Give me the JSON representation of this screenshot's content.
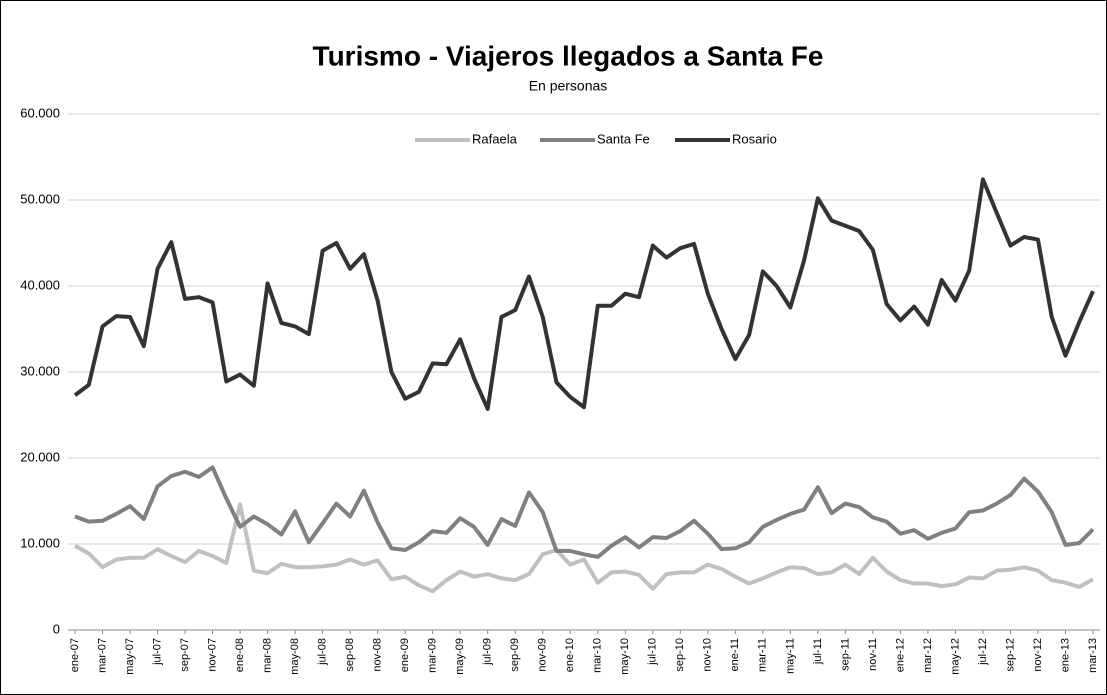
{
  "chart_data": {
    "type": "line",
    "title": "Turismo - Viajeros llegados a Santa Fe",
    "subtitle": "En personas",
    "categories": [
      "ene-07",
      null,
      "mar-07",
      null,
      "may-07",
      null,
      "jul-07",
      null,
      "sep-07",
      null,
      "nov-07",
      null,
      "ene-08",
      null,
      "mar-08",
      null,
      "may-08",
      null,
      "jul-08",
      null,
      "sep-08",
      null,
      "nov-08",
      null,
      "ene-09",
      null,
      "mar-09",
      null,
      "may-09",
      null,
      "jul-09",
      null,
      "sep-09",
      null,
      "nov-09",
      null,
      "ene-10",
      null,
      "mar-10",
      null,
      "may-10",
      null,
      "jul-10",
      null,
      "sep-10",
      null,
      "nov-10",
      null,
      "ene-11",
      null,
      "mar-11",
      null,
      "may-11",
      null,
      "jul-11",
      null,
      "sep-11",
      null,
      "nov-11",
      null,
      "ene-12",
      null,
      "mar-12",
      null,
      "may-12",
      null,
      "jul-12",
      null,
      "sep-12",
      null,
      "nov-12",
      null,
      "ene-13",
      null,
      "mar-13"
    ],
    "series": [
      {
        "name": "Rafaela",
        "color": "#c0c0c0",
        "values": [
          9800,
          8900,
          7300,
          8200,
          8400,
          8400,
          9400,
          8600,
          7900,
          9200,
          8600,
          7800,
          14600,
          6900,
          6600,
          7700,
          7300,
          7300,
          7400,
          7600,
          8200,
          7600,
          8100,
          5900,
          6200,
          5200,
          4500,
          5800,
          6800,
          6200,
          6500,
          6000,
          5800,
          6500,
          8800,
          9300,
          7600,
          8200,
          5500,
          6700,
          6800,
          6400,
          4800,
          6500,
          6700,
          6700,
          7600,
          7100,
          6200,
          5400,
          6000,
          6700,
          7300,
          7200,
          6500,
          6700,
          7600,
          6500,
          8400,
          6800,
          5800,
          5400,
          5400,
          5100,
          5300,
          6100,
          6000,
          6900,
          7000,
          7300,
          6900,
          5800,
          5500,
          5000,
          5900
        ]
      },
      {
        "name": "Santa Fe",
        "color": "#808080",
        "values": [
          13200,
          12600,
          12700,
          13500,
          14400,
          12900,
          16700,
          17900,
          18400,
          17800,
          18900,
          15300,
          12000,
          13200,
          12300,
          11100,
          13800,
          10200,
          12400,
          14700,
          13200,
          16200,
          12500,
          9500,
          9300,
          10200,
          11500,
          11300,
          13000,
          12000,
          9900,
          12900,
          12100,
          16000,
          13700,
          9200,
          9200,
          8800,
          8500,
          9800,
          10800,
          9600,
          10800,
          10700,
          11500,
          12700,
          11200,
          9400,
          9500,
          10200,
          12000,
          12800,
          13500,
          14000,
          16600,
          13600,
          14700,
          14300,
          13100,
          12600,
          11200,
          11600,
          10600,
          11300,
          11800,
          13700,
          13900,
          14700,
          15700,
          17600,
          16100,
          13700,
          9900,
          10100,
          11700
        ]
      },
      {
        "name": "Rosario",
        "color": "#333333",
        "values": [
          27300,
          28500,
          35300,
          36500,
          36400,
          33000,
          42000,
          45100,
          38500,
          38700,
          38100,
          28900,
          29700,
          28400,
          40300,
          35700,
          35300,
          34400,
          44100,
          45000,
          42000,
          43700,
          38300,
          30000,
          26900,
          27700,
          31000,
          30900,
          33800,
          29300,
          25700,
          36400,
          37200,
          41100,
          36400,
          28800,
          27100,
          25900,
          37700,
          37700,
          39100,
          38700,
          44700,
          43300,
          44400,
          44900,
          39100,
          35000,
          31500,
          34300,
          41700,
          40000,
          37500,
          43000,
          50200,
          47600,
          47000,
          46400,
          44200,
          37900,
          36000,
          37600,
          35500,
          40700,
          38300,
          41800,
          52400,
          48500,
          44700,
          45700,
          45400,
          36400,
          31900,
          35800,
          39400
        ]
      }
    ],
    "ylim": [
      0,
      60000
    ],
    "yticks": [
      0,
      {
        "value": 10000,
        "label": "10.000"
      },
      {
        "value": 20000,
        "label": "20.000"
      },
      {
        "value": 30000,
        "label": "30.000"
      },
      {
        "value": 40000,
        "label": "40.000"
      },
      {
        "value": 50000,
        "label": "50.000"
      },
      {
        "value": 60000,
        "label": "60.000"
      }
    ],
    "grid": true,
    "legend": "top"
  }
}
